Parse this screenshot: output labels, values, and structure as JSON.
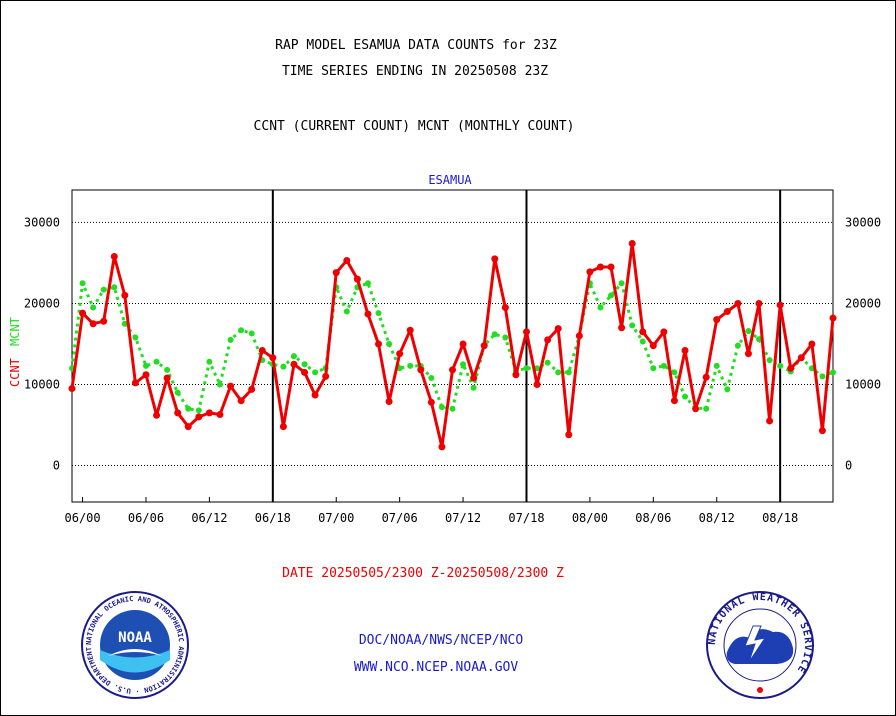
{
  "header": {
    "title_line1": "RAP MODEL ESAMUA DATA COUNTS for 23Z",
    "title_line2": "TIME SERIES ENDING IN 20250508 23Z",
    "subtitle": "CCNT (CURRENT COUNT) MCNT (MONTHLY COUNT)"
  },
  "footer": {
    "date_range": "DATE 20250505/2300 Z-20250508/2300 Z",
    "org_line": "DOC/NOAA/NWS/NCEP/NCO",
    "url_line": "WWW.NCO.NCEP.NOAA.GOV"
  },
  "logos": {
    "left": {
      "name": "noaa-logo",
      "text": "NOAA",
      "ring_text": "NATIONAL OCEANIC AND ATMOSPHERIC ADMINISTRATION · U.S. DEPARTMENT OF COMMERCE"
    },
    "right": {
      "name": "nws-logo",
      "ring_text": "NATIONAL WEATHER SERVICE"
    }
  },
  "colors": {
    "ccnt": "#ee0000",
    "mcnt": "#22dd22",
    "panel_label": "#1a1acc",
    "axis": "#000000"
  },
  "chart_data": {
    "type": "line",
    "title": "ESAMUA",
    "ylabel_left": "CCNT",
    "ylabel_right": "MCNT",
    "ylim": [
      -4500,
      34000
    ],
    "yticks": [
      0,
      10000,
      20000,
      30000
    ],
    "ytick_labels": [
      "0",
      "10000",
      "20000",
      "30000"
    ],
    "xlim": [
      -1,
      71
    ],
    "xtick_positions": [
      0,
      6,
      12,
      18,
      24,
      30,
      36,
      42,
      48,
      54,
      60,
      66
    ],
    "xtick_labels": [
      "06/00",
      "06/06",
      "06/12",
      "06/18",
      "07/00",
      "07/06",
      "07/12",
      "07/18",
      "08/00",
      "08/06",
      "08/12",
      "08/18"
    ],
    "day_boundaries": [
      18,
      42,
      66
    ],
    "grid": "horizontal-dotted",
    "x": [
      -1,
      0,
      1,
      2,
      3,
      4,
      5,
      6,
      7,
      8,
      9,
      10,
      11,
      12,
      13,
      14,
      15,
      16,
      17,
      18,
      19,
      20,
      21,
      22,
      23,
      24,
      25,
      26,
      27,
      28,
      29,
      30,
      31,
      32,
      33,
      34,
      35,
      36,
      37,
      38,
      39,
      40,
      41,
      42,
      43,
      44,
      45,
      46,
      47,
      48,
      49,
      50,
      51,
      52,
      53,
      54,
      55,
      56,
      57,
      58,
      59,
      60,
      61,
      62,
      63,
      64,
      65,
      66,
      67,
      68,
      69,
      70,
      71
    ],
    "series": [
      {
        "name": "CCNT",
        "color": "#ee0000",
        "style": "solid",
        "values": [
          9500,
          18800,
          17500,
          17800,
          25800,
          21000,
          10200,
          11200,
          6200,
          10800,
          6500,
          4800,
          6000,
          6500,
          6300,
          9800,
          8000,
          9400,
          14200,
          13300,
          4800,
          12500,
          11500,
          8700,
          11000,
          23800,
          25300,
          23000,
          18700,
          15000,
          7900,
          13800,
          16700,
          11800,
          7800,
          2300,
          11800,
          15000,
          10800,
          14800,
          25500,
          19500,
          11200,
          16500,
          10000,
          15500,
          16900,
          3800,
          16000,
          23900,
          24500,
          24500,
          17000,
          27400,
          16500,
          14800,
          16500,
          8000,
          14200,
          7000,
          10900,
          18000,
          19000,
          20000,
          13800,
          20000,
          5500,
          19800,
          12000,
          13300,
          15000,
          4300,
          18200
        ]
      },
      {
        "name": "MCNT",
        "color": "#22dd22",
        "style": "dotted",
        "values": [
          12000,
          22500,
          19500,
          21700,
          22000,
          17500,
          15800,
          12300,
          12800,
          11800,
          9000,
          7000,
          6800,
          12800,
          10000,
          15500,
          16700,
          16300,
          13000,
          12500,
          12200,
          13500,
          12500,
          11500,
          12000,
          22000,
          19000,
          22000,
          22500,
          18800,
          15000,
          12000,
          12300,
          12300,
          10800,
          7200,
          7000,
          12500,
          9600,
          14800,
          16200,
          15800,
          11700,
          12000,
          12000,
          12700,
          11500,
          11500,
          16000,
          22500,
          19500,
          21000,
          22500,
          17300,
          15300,
          12000,
          12300,
          11500,
          8500,
          7100,
          7000,
          12300,
          9400,
          14800,
          16600,
          15600,
          13000,
          12300,
          11600,
          13300,
          12000,
          11000,
          11500
        ]
      }
    ]
  }
}
